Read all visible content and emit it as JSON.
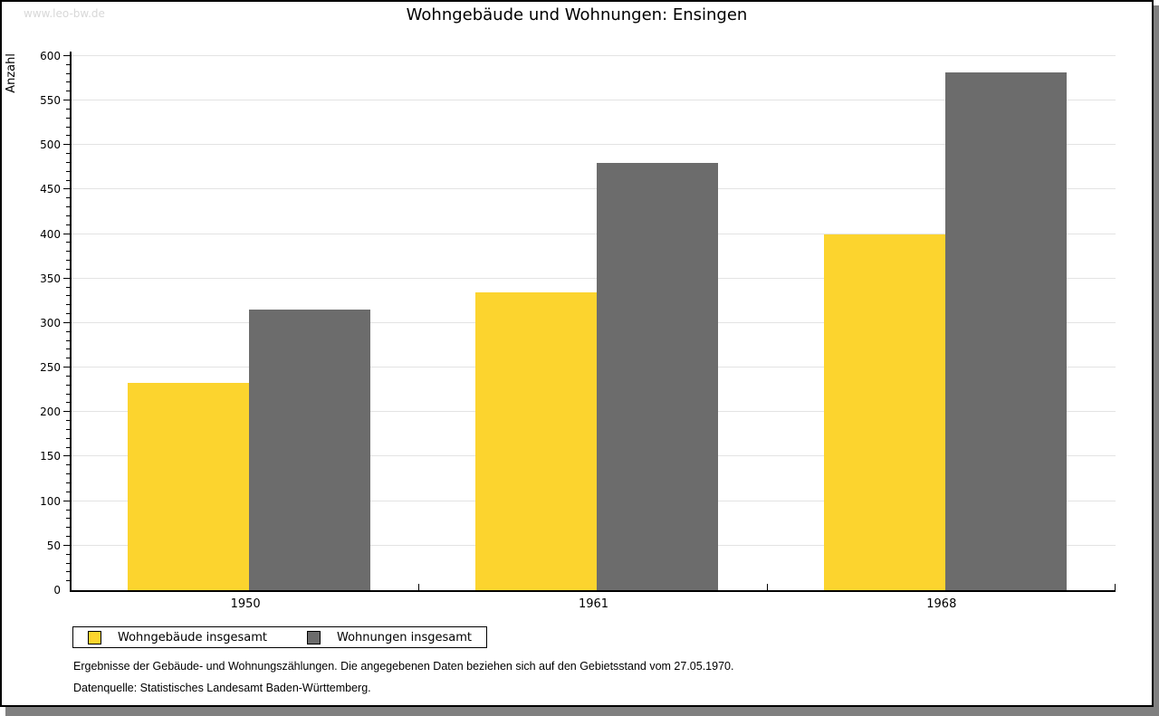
{
  "watermark": "www.leo-bw.de",
  "title": "Wohngebäude und Wohnungen: Ensingen",
  "chart_data": {
    "type": "bar",
    "title": "Wohngebäude und Wohnungen: Ensingen",
    "categories": [
      "1950",
      "1961",
      "1968"
    ],
    "series": [
      {
        "name": "Wohngebäude insgesamt",
        "color": "#FCD42E",
        "values": [
          233,
          335,
          400
        ]
      },
      {
        "name": "Wohnungen insgesamt",
        "color": "#6C6C6C",
        "values": [
          315,
          480,
          582
        ]
      }
    ],
    "xlabel": "",
    "ylabel": "Anzahl",
    "ylim": [
      0,
      600
    ],
    "ytick_step": 50,
    "minor_tick_step": 10,
    "grid": true,
    "legend_position": "bottom"
  },
  "footer": {
    "line1": "Ergebnisse der Gebäude- und Wohnungszählungen. Die angegebenen Daten beziehen sich auf den Gebietsstand vom 27.05.1970.",
    "line2": "Datenquelle: Statistisches Landesamt Baden-Württemberg."
  },
  "colors": {
    "bar_yellow": "#FCD42E",
    "bar_gray": "#6C6C6C",
    "gridline": "#E3E3E3",
    "watermark": "#D8D8D8",
    "shadow": "#808080",
    "axis": "#000000"
  }
}
